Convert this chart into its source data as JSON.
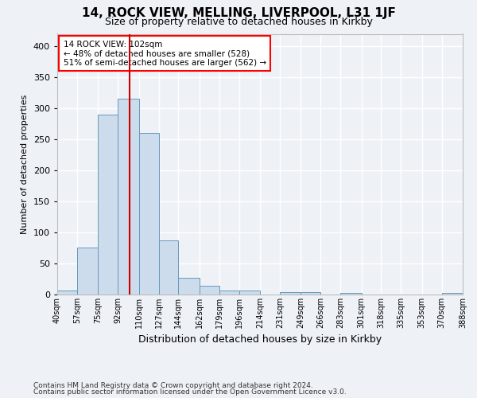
{
  "title1": "14, ROCK VIEW, MELLING, LIVERPOOL, L31 1JF",
  "title2": "Size of property relative to detached houses in Kirkby",
  "xlabel": "Distribution of detached houses by size in Kirkby",
  "ylabel": "Number of detached properties",
  "footer1": "Contains HM Land Registry data © Crown copyright and database right 2024.",
  "footer2": "Contains public sector information licensed under the Open Government Licence v3.0.",
  "annotation_line1": "14 ROCK VIEW: 102sqm",
  "annotation_line2": "← 48% of detached houses are smaller (528)",
  "annotation_line3": "51% of semi-detached houses are larger (562) →",
  "bar_color": "#cddcec",
  "bar_edge_color": "#6699bb",
  "vline_color": "#cc0000",
  "vline_x": 102,
  "bin_edges": [
    40,
    57,
    75,
    92,
    110,
    127,
    144,
    162,
    179,
    196,
    214,
    231,
    249,
    266,
    283,
    301,
    318,
    335,
    353,
    370,
    388
  ],
  "bar_heights": [
    7,
    76,
    290,
    315,
    260,
    87,
    27,
    14,
    7,
    6,
    0,
    4,
    4,
    0,
    2,
    0,
    0,
    0,
    0,
    2
  ],
  "ylim": [
    0,
    420
  ],
  "yticks": [
    0,
    50,
    100,
    150,
    200,
    250,
    300,
    350,
    400
  ],
  "bg_color": "#eef2f7",
  "grid_color": "#ffffff",
  "title1_fontsize": 11,
  "title2_fontsize": 9,
  "xlabel_fontsize": 9,
  "ylabel_fontsize": 8,
  "footer_fontsize": 6.5,
  "annot_fontsize": 7.5
}
